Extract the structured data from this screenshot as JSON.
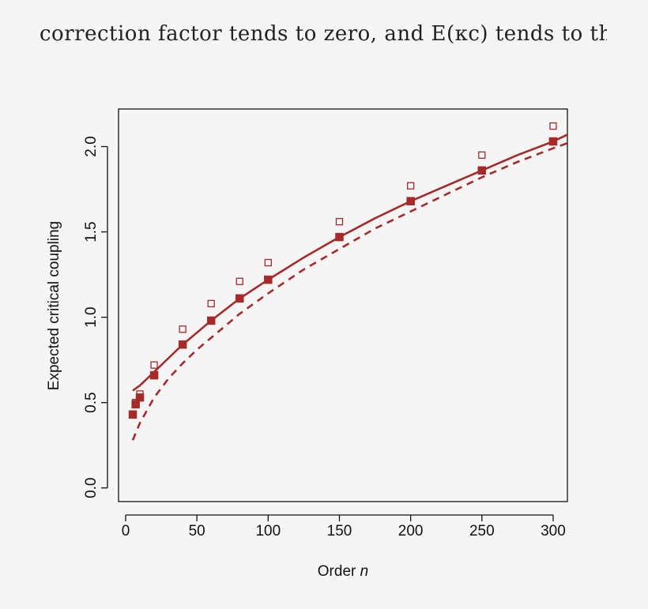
{
  "header": {
    "text": "correction factor tends to zero, and E(κc) tends to th"
  },
  "colors": {
    "series": "#a52a2a",
    "axis": "#111111",
    "background": "#f5f5f5"
  },
  "chart_data": {
    "type": "line",
    "title": "",
    "xlabel_prefix": "Order ",
    "xlabel_var": "n",
    "ylabel": "Expected critical coupling",
    "xlim": [
      -5,
      310
    ],
    "ylim": [
      -0.08,
      2.22
    ],
    "x_ticks": [
      0,
      50,
      100,
      150,
      200,
      250,
      300
    ],
    "x_tick_labels": [
      "0",
      "50",
      "100",
      "150",
      "200",
      "250",
      "300"
    ],
    "y_ticks": [
      0.0,
      0.5,
      1.0,
      1.5,
      2.0
    ],
    "y_tick_labels": [
      "0.0",
      "0.5",
      "1.0",
      "1.5",
      "2.0"
    ],
    "grid": false,
    "legend": "none",
    "series": [
      {
        "style": "filled-square-markers",
        "x": [
          5,
          7,
          10,
          20,
          40,
          60,
          80,
          100,
          150,
          200,
          250,
          300
        ],
        "y": [
          0.43,
          0.49,
          0.53,
          0.66,
          0.84,
          0.98,
          1.11,
          1.22,
          1.47,
          1.68,
          1.86,
          2.03
        ]
      },
      {
        "style": "open-square-markers",
        "x": [
          7,
          10,
          20,
          40,
          60,
          80,
          100,
          150,
          200,
          250,
          300
        ],
        "y": [
          0.5,
          0.55,
          0.72,
          0.93,
          1.08,
          1.21,
          1.32,
          1.56,
          1.77,
          1.95,
          2.12
        ]
      },
      {
        "style": "solid-line",
        "x": [
          5,
          10,
          20,
          30,
          40,
          50,
          60,
          80,
          100,
          125,
          150,
          175,
          200,
          225,
          250,
          275,
          300,
          310
        ],
        "y": [
          0.57,
          0.6,
          0.68,
          0.76,
          0.84,
          0.91,
          0.98,
          1.11,
          1.22,
          1.35,
          1.47,
          1.58,
          1.68,
          1.77,
          1.86,
          1.95,
          2.03,
          2.07
        ]
      },
      {
        "style": "dashed-line",
        "x": [
          5,
          10,
          20,
          30,
          40,
          50,
          60,
          80,
          100,
          125,
          150,
          175,
          200,
          225,
          250,
          275,
          300,
          310
        ],
        "y": [
          0.28,
          0.38,
          0.53,
          0.64,
          0.73,
          0.81,
          0.88,
          1.02,
          1.14,
          1.28,
          1.4,
          1.52,
          1.62,
          1.72,
          1.82,
          1.91,
          1.99,
          2.02
        ]
      }
    ]
  }
}
